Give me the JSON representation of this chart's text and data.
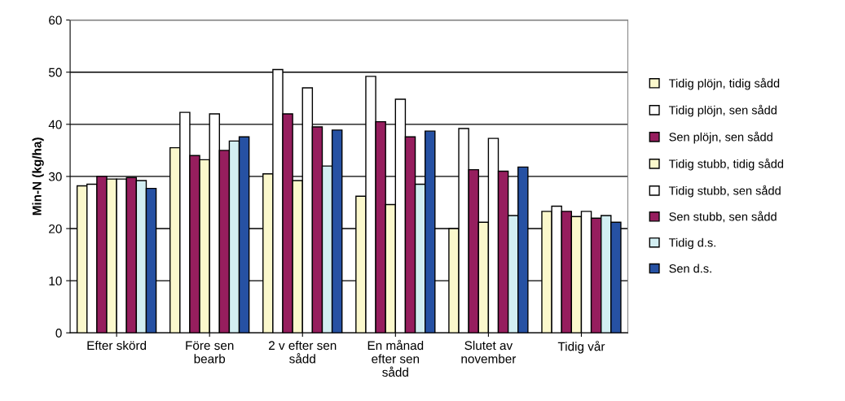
{
  "chart_data": {
    "type": "bar",
    "ylabel": "Min-N (kg/ha)",
    "categories": [
      "Efter skörd",
      "Före sen\nbearb",
      "2 v efter sen\nsådd",
      "En månad\nefter sen\nsådd",
      "Slutet av\nnovember",
      "Tidig vår"
    ],
    "ylim": [
      0,
      60
    ],
    "yticks": [
      0,
      10,
      20,
      30,
      40,
      50,
      60
    ],
    "grid": "y",
    "legend": "right",
    "series": [
      {
        "name": "Tidig plöjn, tidig sådd",
        "color": "#fbf8cc",
        "values": [
          28.2,
          35.5,
          30.5,
          26.2,
          20.0,
          23.3
        ]
      },
      {
        "name": "Tidig plöjn, sen sådd",
        "color": "#ffffff",
        "values": [
          28.5,
          42.3,
          50.5,
          49.2,
          39.2,
          24.3
        ]
      },
      {
        "name": "Sen plöjn, sen sådd",
        "color": "#961e5e",
        "values": [
          30.0,
          34.0,
          42.0,
          40.5,
          31.3,
          23.3
        ]
      },
      {
        "name": "Tidig stubb, tidig sådd",
        "color": "#fbf8cc",
        "values": [
          29.5,
          33.2,
          29.2,
          24.6,
          21.2,
          22.3
        ]
      },
      {
        "name": "Tidig stubb, sen sådd",
        "color": "#ffffff",
        "values": [
          29.5,
          42.0,
          47.0,
          44.8,
          37.3,
          23.3
        ]
      },
      {
        "name": "Sen stubb, sen sådd",
        "color": "#961e5e",
        "values": [
          29.8,
          35.0,
          39.5,
          37.6,
          31.0,
          22.0
        ]
      },
      {
        "name": "Tidig d.s.",
        "color": "#d2eef2",
        "values": [
          29.2,
          36.8,
          32.0,
          28.5,
          22.5,
          22.5
        ]
      },
      {
        "name": "Sen d.s.",
        "color": "#2651a3",
        "values": [
          27.7,
          37.6,
          38.9,
          38.7,
          31.8,
          21.2
        ]
      }
    ]
  }
}
